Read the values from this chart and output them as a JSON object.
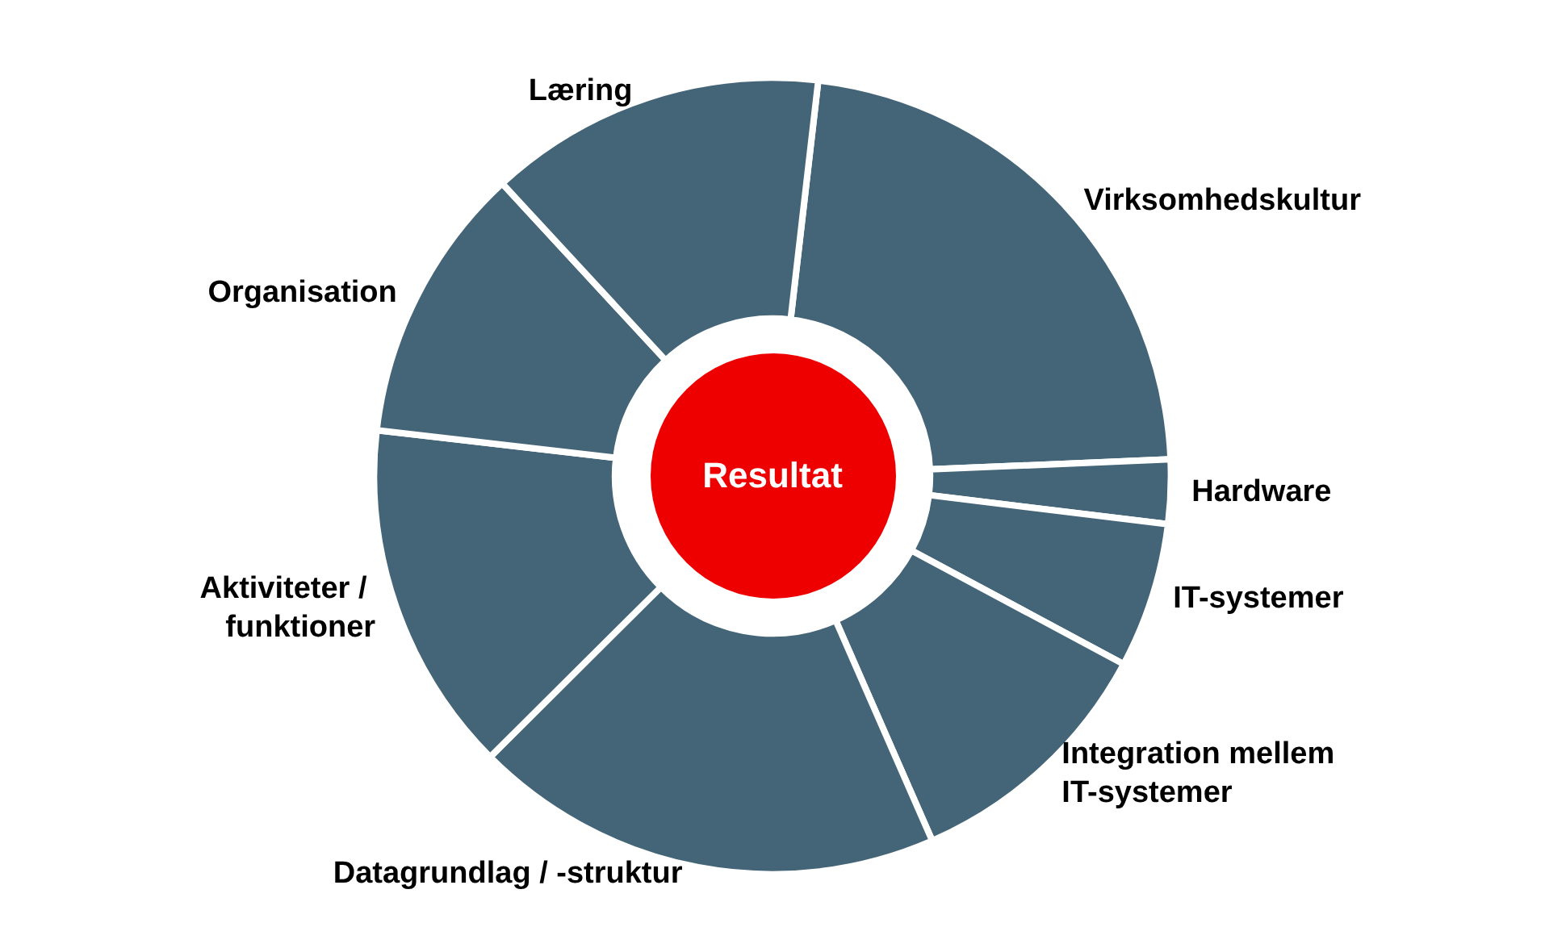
{
  "chart_data": {
    "type": "donut",
    "categories": [
      "Virksomhedskultur",
      "Hardware",
      "IT-systemer",
      "Integration mellem IT-systemer",
      "Datagrundlag / -struktur",
      "Aktiviteter / funktioner",
      "Organisation",
      "Læring"
    ],
    "values": [
      22.5,
      2.6,
      5.9,
      10.6,
      19.1,
      14.3,
      11.3,
      13.7
    ],
    "colors": [
      "#446577",
      "#446577",
      "#446577",
      "#446577",
      "#446577",
      "#446577",
      "#446577",
      "#446577"
    ],
    "annotations": [
      "Resultat"
    ],
    "legend": false
  }
}
